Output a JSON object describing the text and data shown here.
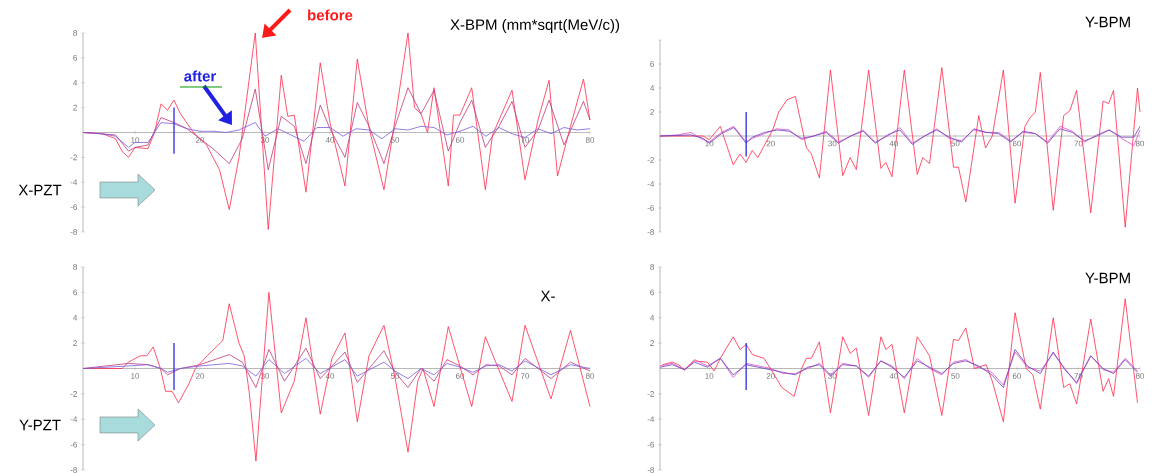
{
  "chart_data": [
    {
      "type": "line",
      "title": "X-BPM (mm*sqrt(MeV/c))",
      "annotations": [
        "before",
        "after",
        "X-PZT"
      ],
      "xlim": [
        2,
        80
      ],
      "ylim": [
        -8,
        8
      ],
      "xticks": [
        10,
        20,
        30,
        40,
        50,
        60,
        70,
        80
      ],
      "yticks": [
        -8,
        -6,
        -4,
        -2,
        2,
        4,
        6,
        8
      ],
      "marker": "none",
      "line_style": "solid",
      "ref_lines": [
        {
          "axis": "x",
          "value": 16,
          "color": "#2a2ae0"
        }
      ],
      "series": [
        {
          "color": "#ff2a4a",
          "x": [
            2,
            5,
            7,
            8,
            9,
            10,
            12,
            13,
            14,
            15,
            16,
            17,
            19,
            21,
            23,
            24.5,
            26,
            28.5,
            30.5,
            32.5,
            33.5,
            34.5,
            36.3,
            38.5,
            40,
            42.3,
            44.2,
            46,
            48.3,
            50,
            52,
            53,
            54,
            55,
            56,
            58.2,
            59,
            60,
            61.8,
            63.9,
            65,
            66,
            68,
            70,
            72,
            73.7,
            75,
            77,
            79,
            80
          ],
          "values": [
            0,
            -0.1,
            -0.5,
            -1.5,
            -2,
            -1.2,
            -1.3,
            0,
            2.3,
            1.8,
            2.6,
            1.5,
            0,
            -1,
            -3,
            -6.2,
            -2,
            8,
            -7.8,
            4.6,
            1.3,
            1.4,
            -4.8,
            5.6,
            0.8,
            -4.3,
            5.9,
            0.4,
            -4.6,
            1,
            8,
            2,
            1.5,
            0,
            3.6,
            -4.3,
            1.4,
            1.4,
            3.6,
            -4.6,
            -0.2,
            1,
            3.4,
            -3.8,
            1,
            4.2,
            -3.5,
            0.5,
            4.3,
            1
          ]
        },
        {
          "color": "#c03878",
          "x": [
            2,
            7,
            9,
            10,
            12,
            14,
            16,
            18,
            20,
            22,
            24.5,
            26.5,
            28.5,
            30.5,
            32.5,
            34.5,
            36.3,
            38.5,
            40,
            42.3,
            44.2,
            46,
            48.3,
            50,
            52,
            54,
            56,
            58.2,
            60,
            61.8,
            63.9,
            66,
            68,
            70,
            72,
            73.7,
            76,
            79,
            80
          ],
          "values": [
            0,
            -0.2,
            -1.5,
            -1.2,
            -1,
            1.2,
            0.8,
            0.3,
            -0.5,
            -1.3,
            -2.5,
            -0.5,
            3.5,
            -3,
            1.3,
            0.5,
            -2.5,
            2.2,
            0.3,
            -2,
            2.4,
            0.5,
            -2.5,
            0.5,
            3.6,
            1.5,
            3.4,
            -1.5,
            0.8,
            2.6,
            -1.2,
            0.5,
            2.5,
            -1.2,
            0.2,
            2.6,
            -1,
            2.5,
            1
          ]
        },
        {
          "color": "#7a5ce0",
          "x": [
            2,
            5,
            7,
            9,
            10,
            12,
            14,
            16,
            18,
            20,
            22,
            24,
            26,
            28.5,
            30,
            32,
            34,
            36,
            38,
            40,
            42,
            44,
            46,
            48,
            50,
            52,
            54,
            56,
            58,
            60,
            62,
            64,
            66,
            68,
            70,
            72,
            74,
            76,
            78,
            80
          ],
          "values": [
            0,
            -0.1,
            -0.3,
            -1.2,
            -0.8,
            -0.8,
            0.8,
            0.7,
            0.3,
            0.1,
            0.1,
            0,
            0.2,
            0.8,
            -0.3,
            0.3,
            -0.2,
            -0.7,
            0.4,
            0.4,
            -0.3,
            0.3,
            0.2,
            -0.5,
            0.3,
            0.2,
            0.5,
            0.4,
            -0.2,
            0.1,
            0.5,
            -0.3,
            0.4,
            -0.1,
            -0.4,
            0.3,
            -0.1,
            0.4,
            0.2,
            0.3
          ]
        }
      ]
    },
    {
      "type": "line",
      "title": "Y-BPM",
      "xlim": [
        2,
        80
      ],
      "ylim": [
        -8,
        8
      ],
      "xticks": [
        10,
        20,
        30,
        40,
        50,
        60,
        70,
        80
      ],
      "yticks": [
        -8,
        -6,
        -4,
        -2,
        2,
        4,
        6,
        {
          "value": 8,
          "label": null
        }
      ],
      "marker": "none",
      "line_style": "solid",
      "ref_lines": [
        {
          "axis": "x",
          "value": 16,
          "color": "#2a2ae0"
        }
      ],
      "series": [
        {
          "color": "#ff2a4a",
          "x": [
            2,
            6,
            9,
            10,
            11.8,
            13.9,
            15,
            16,
            17,
            17.9,
            20.3,
            21.3,
            22.6,
            24,
            25.8,
            26.6,
            27.9,
            29.7,
            31.7,
            32.9,
            33.9,
            35.9,
            37.9,
            38.7,
            39.7,
            41.7,
            43.8,
            44.7,
            45.8,
            47.8,
            49.7,
            50.5,
            51.7,
            53.8,
            54.9,
            56,
            57.8,
            59.7,
            61.3,
            62.1,
            63,
            63.8,
            65.9,
            67.6,
            68.6,
            69.7,
            72,
            74,
            74.9,
            75.7,
            77.6,
            79.6,
            80
          ],
          "values": [
            0,
            0,
            0,
            -0.3,
            0.8,
            -2.4,
            -1.5,
            -2.2,
            -1.2,
            -1.8,
            0.5,
            2,
            3,
            3.3,
            -1,
            -1.5,
            -3.5,
            5.5,
            -3.3,
            -1.8,
            -2.8,
            5.5,
            -2.7,
            -2.2,
            -3.4,
            5.5,
            -3.2,
            -1.8,
            -2.3,
            5.7,
            -2.6,
            -2.6,
            -5.5,
            1.7,
            -1,
            0,
            5.5,
            -5.6,
            0.8,
            1.5,
            2,
            5.3,
            -6.2,
            1.7,
            2.1,
            3.8,
            -6.4,
            2.9,
            2.7,
            3.8,
            -7.6,
            4,
            2
          ]
        },
        {
          "color": "#e050c0",
          "x": [
            2,
            5,
            7,
            9,
            10,
            12,
            14,
            16,
            17,
            19,
            21,
            23,
            25,
            27,
            29,
            31,
            33,
            35,
            37,
            39,
            41,
            43,
            45,
            47,
            49,
            51,
            53,
            55,
            57,
            59,
            61,
            63,
            65,
            67,
            69,
            71,
            73,
            75,
            77,
            79,
            80
          ],
          "values": [
            0,
            0.1,
            0.3,
            -0.3,
            -0.5,
            0.3,
            0.8,
            -0.5,
            -0.2,
            0.2,
            0.6,
            0.5,
            -0.3,
            0,
            0.4,
            -0.5,
            0,
            0.5,
            -0.5,
            0,
            0.7,
            -0.6,
            0,
            0.6,
            -0.2,
            -0.4,
            0.5,
            0.3,
            0.3,
            -0.4,
            0.3,
            0.2,
            -0.5,
            0.8,
            0.4,
            -0.5,
            0.1,
            0.5,
            -0.2,
            -0.8,
            0.5
          ]
        },
        {
          "color": "#6a3cc0",
          "x": [
            2,
            5,
            7,
            9,
            10,
            12,
            14,
            16,
            17,
            19,
            21,
            23,
            25,
            27,
            29,
            31,
            33,
            35,
            37,
            39,
            41,
            43,
            45,
            47,
            49,
            51,
            53,
            55,
            57,
            59,
            61,
            63,
            65,
            67,
            69,
            71,
            73,
            75,
            77,
            79,
            80
          ],
          "values": [
            0,
            0.05,
            0.1,
            -0.2,
            -0.6,
            0.2,
            0.7,
            -0.6,
            -0.1,
            0.3,
            0.5,
            0.4,
            -0.2,
            0,
            0.3,
            -0.6,
            0,
            0.4,
            -0.6,
            0.1,
            0.5,
            -0.7,
            0,
            0.5,
            -0.1,
            -0.5,
            0.6,
            0.3,
            0.2,
            -0.5,
            0.4,
            0.2,
            -0.6,
            0.6,
            0.3,
            -0.4,
            0,
            0.5,
            -0.1,
            -0.1,
            0.8
          ]
        }
      ]
    },
    {
      "type": "line",
      "title": "X-",
      "annotations": [
        "Y-PZT"
      ],
      "xlim": [
        2,
        80
      ],
      "ylim": [
        -8,
        8
      ],
      "xticks": [
        10,
        20,
        30,
        40,
        50,
        60,
        70,
        80
      ],
      "yticks": [
        -8,
        -6,
        -4,
        -2,
        2,
        4,
        6,
        8
      ],
      "marker": "none",
      "line_style": "solid",
      "ref_lines": [
        {
          "axis": "x",
          "value": 16,
          "color": "#2a2ae0"
        }
      ],
      "series": [
        {
          "color": "#ff2a4a",
          "x": [
            2,
            8,
            9,
            10.8,
            11.8,
            12.8,
            13.9,
            14.7,
            15.7,
            16.7,
            18.3,
            19.3,
            21.1,
            23.5,
            24.5,
            26,
            26.8,
            27.6,
            28.6,
            30.6,
            32.5,
            34.5,
            36.3,
            38.5,
            40.3,
            42.3,
            44.2,
            46,
            48.3,
            50.1,
            52,
            53.5,
            54.3,
            56,
            58.2,
            61.8,
            63.9,
            66.3,
            68,
            70,
            74,
            77,
            80
          ],
          "values": [
            0,
            0,
            0.5,
            1,
            1,
            1.7,
            0,
            -1.8,
            -1.8,
            -2.7,
            -1.2,
            0,
            1,
            2.2,
            5.1,
            2,
            1,
            -2,
            -7.3,
            6,
            -3.5,
            -1,
            4,
            -3.6,
            0.8,
            2.8,
            -4.2,
            1,
            3.4,
            -1,
            -6.6,
            -1,
            0,
            -3,
            3.3,
            -3,
            2.5,
            -0.5,
            -2.6,
            3.4,
            -2.4,
            3,
            -3
          ]
        },
        {
          "color": "#c03878",
          "x": [
            2,
            9,
            12,
            14,
            15,
            17,
            20,
            24.5,
            26.5,
            28.6,
            30.6,
            33,
            36.3,
            38.5,
            42.3,
            44.2,
            48.3,
            50,
            52,
            54,
            56,
            58,
            60,
            62,
            64,
            66,
            68,
            70,
            74,
            77,
            80
          ],
          "values": [
            0,
            0.4,
            0.3,
            0,
            -0.5,
            0,
            0.3,
            1.1,
            0.5,
            -1.5,
            1.5,
            -1,
            1.6,
            -0.8,
            1.3,
            -1.1,
            1.4,
            -0.3,
            -1.5,
            0,
            -1,
            0.7,
            0.2,
            -0.5,
            0.3,
            0.2,
            -0.5,
            0.8,
            -0.8,
            0.5,
            -0.2
          ]
        },
        {
          "color": "#7a5ce0",
          "x": [
            2,
            9,
            12,
            14,
            15,
            17,
            20,
            24.5,
            26.5,
            28.6,
            30.6,
            33,
            36.3,
            38.5,
            42.3,
            44.2,
            48.3,
            50,
            52,
            54,
            56,
            58,
            60,
            62,
            64,
            66,
            68,
            70,
            74,
            77,
            80
          ],
          "values": [
            0,
            0.2,
            0.3,
            0,
            -0.3,
            0,
            0.2,
            0.4,
            0.2,
            -0.6,
            0.7,
            -0.4,
            0.8,
            -0.4,
            0.7,
            -0.6,
            0.5,
            -0.2,
            -0.8,
            0,
            -0.5,
            0.4,
            0.1,
            -0.3,
            0.2,
            0.3,
            -0.2,
            0.6,
            -0.5,
            0.3,
            0
          ]
        }
      ]
    },
    {
      "type": "line",
      "title": "Y-BPM",
      "xlim": [
        2,
        80
      ],
      "ylim": [
        -8,
        8
      ],
      "xticks": [
        10,
        20,
        30,
        40,
        50,
        60,
        70,
        80
      ],
      "yticks": [
        -8,
        -6,
        -4,
        -2,
        2,
        4,
        6,
        8
      ],
      "marker": "none",
      "line_style": "solid",
      "ref_lines": [
        {
          "axis": "x",
          "value": 16,
          "color": "#2a2ae0"
        }
      ],
      "series": [
        {
          "color": "#ff2a4a",
          "x": [
            2.4,
            4,
            5,
            6,
            7.6,
            9.7,
            10.8,
            11.8,
            13.9,
            15,
            16,
            17,
            18.9,
            20.2,
            21.8,
            23.8,
            25,
            25.8,
            26.6,
            27.9,
            29.7,
            31.7,
            32.9,
            33.9,
            35.9,
            37.9,
            38.7,
            39.7,
            41.7,
            43.8,
            45.8,
            47.8,
            49.7,
            50.5,
            51.7,
            53.1,
            55,
            56,
            57.8,
            59.7,
            61.5,
            62.6,
            63.8,
            65.9,
            67.6,
            68.6,
            69.7,
            72,
            74,
            74.9,
            75.7,
            77.6,
            79.6
          ],
          "values": [
            0.3,
            0.5,
            0.3,
            -0.1,
            0.6,
            0.5,
            -0.2,
            0.8,
            2.5,
            1.5,
            1.9,
            1.1,
            0.8,
            -0.2,
            -1.5,
            -2.2,
            0,
            0.8,
            0.8,
            2.1,
            -3.5,
            2.5,
            1.2,
            1.6,
            -3.7,
            2.5,
            1.5,
            1.9,
            -3.5,
            2.5,
            1,
            -3.7,
            2.3,
            2.2,
            3.2,
            0,
            0.3,
            -1,
            -4.2,
            4.4,
            0,
            -0.5,
            -3.2,
            4,
            -1.5,
            -1.2,
            -2.8,
            3.9,
            -1.8,
            -0.8,
            -2.2,
            5.5,
            -2.7
          ]
        },
        {
          "color": "#e050c0",
          "x": [
            2,
            4,
            6,
            7.6,
            9.7,
            11.8,
            13.9,
            16,
            18,
            20,
            22,
            24,
            26,
            27.9,
            29.7,
            31.7,
            33.9,
            35.9,
            37.9,
            39.7,
            41.7,
            43.8,
            45.8,
            47.8,
            49.7,
            51.7,
            53.8,
            55.9,
            57.8,
            59.7,
            61.7,
            63.8,
            65.9,
            67.8,
            69.7,
            72,
            74,
            75.7,
            77.6,
            79.6
          ],
          "values": [
            0.2,
            0.4,
            -0.1,
            0.7,
            0.2,
            0.8,
            -0.7,
            0.4,
            0.2,
            0,
            -0.4,
            -0.4,
            0,
            0.4,
            -0.5,
            0.4,
            0.2,
            -0.7,
            0.6,
            0.2,
            -0.8,
            0.8,
            0,
            -0.5,
            0.5,
            0.7,
            0.1,
            -0.3,
            -1.3,
            1.3,
            0.1,
            -0.2,
            1.2,
            0,
            -1.2,
            1,
            -0.1,
            -0.3,
            0.8,
            -0.2
          ]
        },
        {
          "color": "#6a3cc0",
          "x": [
            2,
            4,
            6,
            7.6,
            9.7,
            11.8,
            13.9,
            16,
            18,
            20,
            22,
            24,
            26,
            27.9,
            29.7,
            31.7,
            33.9,
            35.9,
            37.9,
            39.7,
            41.7,
            43.8,
            45.8,
            47.8,
            49.7,
            51.7,
            53.8,
            55.9,
            57.8,
            59.7,
            61.7,
            63.8,
            65.9,
            67.8,
            69.7,
            72,
            74,
            75.7,
            77.6,
            79.6
          ],
          "values": [
            0.1,
            0.3,
            -0.1,
            0.5,
            0.1,
            0.8,
            -0.5,
            0.3,
            0.1,
            -0.1,
            -0.3,
            -0.5,
            0.1,
            0.3,
            -0.6,
            0.3,
            0.2,
            -0.6,
            0.6,
            0.1,
            -0.7,
            0.6,
            0.1,
            -0.4,
            0.4,
            0.6,
            0.2,
            -0.5,
            -1.5,
            1.5,
            0.2,
            -0.4,
            1.3,
            -0.1,
            -1.1,
            1,
            0,
            -0.4,
            0.7,
            -0.3
          ]
        }
      ]
    }
  ]
}
